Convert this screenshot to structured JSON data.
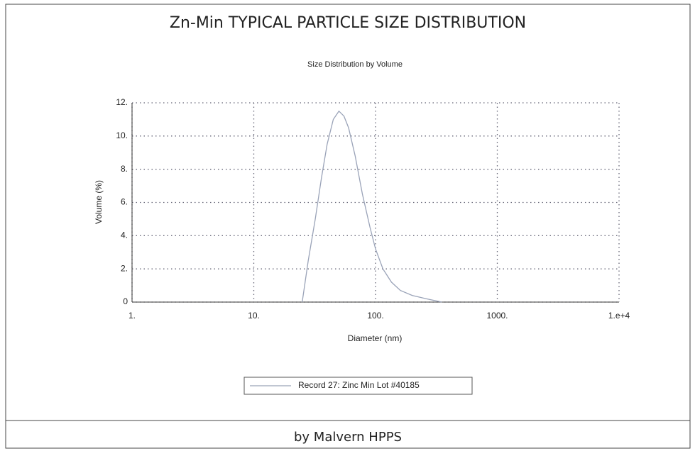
{
  "header": "Zn-Min TYPICAL PARTICLE SIZE DISTRIBUTION",
  "footer": "by Malvern HPPS",
  "chart_data": {
    "type": "line",
    "title": "Size Distribution by Volume",
    "x_label": "Diameter (nm)",
    "y_label": "Volume (%)",
    "xscale": "log",
    "xlim": [
      1,
      10000
    ],
    "xticks": [
      {
        "value": 1,
        "label": "1."
      },
      {
        "value": 10,
        "label": "10."
      },
      {
        "value": 100,
        "label": "100."
      },
      {
        "value": 1000,
        "label": "1000."
      },
      {
        "value": 10000,
        "label": "1.e+4"
      }
    ],
    "ylim": [
      0,
      12
    ],
    "yticks": [
      0,
      {
        "value": 2,
        "label": "2."
      },
      {
        "value": 4,
        "label": "4."
      },
      {
        "value": 6,
        "label": "6."
      },
      {
        "value": 8,
        "label": "8."
      },
      {
        "value": 10,
        "label": "10."
      },
      {
        "value": 12,
        "label": "12."
      }
    ],
    "grid": true,
    "legend": "bottom",
    "x": [
      25,
      28,
      32,
      36,
      40,
      45,
      50,
      55,
      60,
      68,
      78,
      90,
      100,
      115,
      135,
      160,
      200,
      260,
      350
    ],
    "series": [
      {
        "name": "Record 27: Zinc Min Lot #40185",
        "color": "#9aa3b8",
        "values": [
          0,
          2.5,
          5,
          7.5,
          9.5,
          11,
          11.5,
          11.2,
          10.5,
          8.8,
          6.5,
          4.5,
          3.2,
          2.0,
          1.2,
          0.7,
          0.4,
          0.2,
          0
        ]
      }
    ]
  }
}
